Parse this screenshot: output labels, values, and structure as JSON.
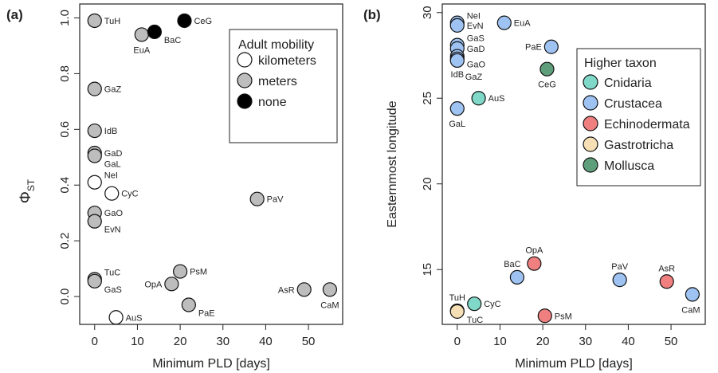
{
  "chart_data": [
    {
      "panel_label": "(a)",
      "type": "scatter",
      "xlabel": "Minimum PLD [days]",
      "ylabel": "Φ",
      "ylabel_sub": "ST",
      "xlim": [
        -3.5,
        58
      ],
      "ylim": [
        -0.1,
        1.05
      ],
      "xticks": [
        0,
        10,
        20,
        30,
        40,
        50
      ],
      "yticks": [
        0.0,
        0.2,
        0.4,
        0.6,
        0.8,
        1.0
      ],
      "ytick_labels": [
        "0.0",
        "0.2",
        "0.4",
        "0.6",
        "0.8",
        "1.0"
      ],
      "legend": {
        "title": "Adult mobility",
        "position": "top-right",
        "entries": [
          {
            "name": "kilometers",
            "color": "#ffffff"
          },
          {
            "name": "meters",
            "color": "#bdbdbd"
          },
          {
            "name": "none",
            "color": "#000000"
          }
        ]
      },
      "points": [
        {
          "label": "TuH",
          "x": 0,
          "y": 0.99,
          "group": "meters",
          "lpos": "right"
        },
        {
          "label": "GaZ",
          "x": 0,
          "y": 0.745,
          "group": "meters",
          "lpos": "right"
        },
        {
          "label": "IdB",
          "x": 0,
          "y": 0.595,
          "group": "meters",
          "lpos": "right"
        },
        {
          "label": "GaD",
          "x": 0,
          "y": 0.515,
          "group": "meters",
          "lpos": "right"
        },
        {
          "label": "GaL",
          "x": 0,
          "y": 0.505,
          "group": "meters",
          "lpos": "right-below"
        },
        {
          "label": "NeI",
          "x": 0,
          "y": 0.41,
          "group": "kilometers",
          "lpos": "right-above"
        },
        {
          "label": "GaO",
          "x": 0,
          "y": 0.3,
          "group": "meters",
          "lpos": "right"
        },
        {
          "label": "EvN",
          "x": 0,
          "y": 0.27,
          "group": "meters",
          "lpos": "right-below"
        },
        {
          "label": "TuC",
          "x": 0,
          "y": 0.062,
          "group": "meters",
          "lpos": "right-above"
        },
        {
          "label": "GaS",
          "x": 0,
          "y": 0.055,
          "group": "meters",
          "lpos": "right-below"
        },
        {
          "label": "CyC",
          "x": 4,
          "y": 0.37,
          "group": "kilometers",
          "lpos": "right"
        },
        {
          "label": "AuS",
          "x": 5,
          "y": -0.075,
          "group": "kilometers",
          "lpos": "right"
        },
        {
          "label": "EuA",
          "x": 11,
          "y": 0.94,
          "group": "meters",
          "lpos": "below"
        },
        {
          "label": "BaC",
          "x": 14,
          "y": 0.95,
          "group": "none",
          "lpos": "right-below"
        },
        {
          "label": "CeG",
          "x": 21,
          "y": 0.99,
          "group": "none",
          "lpos": "right"
        },
        {
          "label": "OpA",
          "x": 18,
          "y": 0.045,
          "group": "meters",
          "lpos": "left"
        },
        {
          "label": "PsM",
          "x": 20,
          "y": 0.09,
          "group": "meters",
          "lpos": "right"
        },
        {
          "label": "PaE",
          "x": 22,
          "y": -0.03,
          "group": "meters",
          "lpos": "right-below"
        },
        {
          "label": "PaV",
          "x": 38,
          "y": 0.35,
          "group": "meters",
          "lpos": "right"
        },
        {
          "label": "AsR",
          "x": 49,
          "y": 0.025,
          "group": "meters",
          "lpos": "left"
        },
        {
          "label": "CaM",
          "x": 55,
          "y": 0.025,
          "group": "meters",
          "lpos": "below"
        }
      ]
    },
    {
      "panel_label": "(b)",
      "type": "scatter",
      "xlabel": "Minimum PLD [days]",
      "ylabel": "Easternmost longitude",
      "xlim": [
        -3.5,
        58
      ],
      "ylim": [
        11.8,
        30.5
      ],
      "xticks": [
        0,
        10,
        20,
        30,
        40,
        50
      ],
      "yticks": [
        15,
        20,
        25,
        30
      ],
      "ytick_labels": [
        "15",
        "20",
        "25",
        "30"
      ],
      "legend": {
        "title": "Higher taxon",
        "position": "top-right",
        "entries": [
          {
            "name": "Cnidaria",
            "color": "#7fd8c8"
          },
          {
            "name": "Crustacea",
            "color": "#9ec2f2"
          },
          {
            "name": "Echinodermata",
            "color": "#f08080"
          },
          {
            "name": "Gastrotricha",
            "color": "#f6dfb4"
          },
          {
            "name": "Mollusca",
            "color": "#5f9e7a"
          }
        ]
      },
      "points": [
        {
          "label": "NeI",
          "x": 0,
          "y": 29.4,
          "group": "Crustacea",
          "lpos": "right-above"
        },
        {
          "label": "EvN",
          "x": 0,
          "y": 29.25,
          "group": "Crustacea",
          "lpos": "right"
        },
        {
          "label": "GaS",
          "x": 0,
          "y": 28.1,
          "group": "Crustacea",
          "lpos": "right-above"
        },
        {
          "label": "GaD",
          "x": 0,
          "y": 27.9,
          "group": "Crustacea",
          "lpos": "right"
        },
        {
          "label": "GaO",
          "x": 0,
          "y": 27.45,
          "group": "Crustacea",
          "lpos": "right-below"
        },
        {
          "label": "IdB",
          "x": 0,
          "y": 27.3,
          "group": "Crustacea",
          "lpos": "below"
        },
        {
          "label": "GaZ",
          "x": 0,
          "y": 27.2,
          "group": "Crustacea",
          "lpos": "right-below2"
        },
        {
          "label": "GaL",
          "x": 0,
          "y": 24.4,
          "group": "Crustacea",
          "lpos": "below"
        },
        {
          "label": "TuH",
          "x": 0,
          "y": 12.6,
          "group": "Gastrotricha",
          "lpos": "above"
        },
        {
          "label": "TuC",
          "x": 0,
          "y": 12.55,
          "group": "Gastrotricha",
          "lpos": "right-below"
        },
        {
          "label": "CyC",
          "x": 4,
          "y": 13.0,
          "group": "Cnidaria",
          "lpos": "right"
        },
        {
          "label": "AuS",
          "x": 5,
          "y": 25.0,
          "group": "Cnidaria",
          "lpos": "right"
        },
        {
          "label": "EuA",
          "x": 11,
          "y": 29.4,
          "group": "Crustacea",
          "lpos": "right"
        },
        {
          "label": "BaC",
          "x": 14,
          "y": 14.55,
          "group": "Crustacea",
          "lpos": "above-left"
        },
        {
          "label": "OpA",
          "x": 18,
          "y": 15.35,
          "group": "Echinodermata",
          "lpos": "above"
        },
        {
          "label": "PsM",
          "x": 20.5,
          "y": 12.3,
          "group": "Echinodermata",
          "lpos": "right"
        },
        {
          "label": "PaE",
          "x": 22,
          "y": 28.0,
          "group": "Crustacea",
          "lpos": "left"
        },
        {
          "label": "CeG",
          "x": 21,
          "y": 26.7,
          "group": "Mollusca",
          "lpos": "below"
        },
        {
          "label": "PaV",
          "x": 38,
          "y": 14.4,
          "group": "Crustacea",
          "lpos": "above"
        },
        {
          "label": "AsR",
          "x": 49,
          "y": 14.3,
          "group": "Echinodermata",
          "lpos": "above"
        },
        {
          "label": "CaM",
          "x": 55,
          "y": 13.55,
          "group": "Crustacea",
          "lpos": "below-left"
        }
      ]
    }
  ]
}
